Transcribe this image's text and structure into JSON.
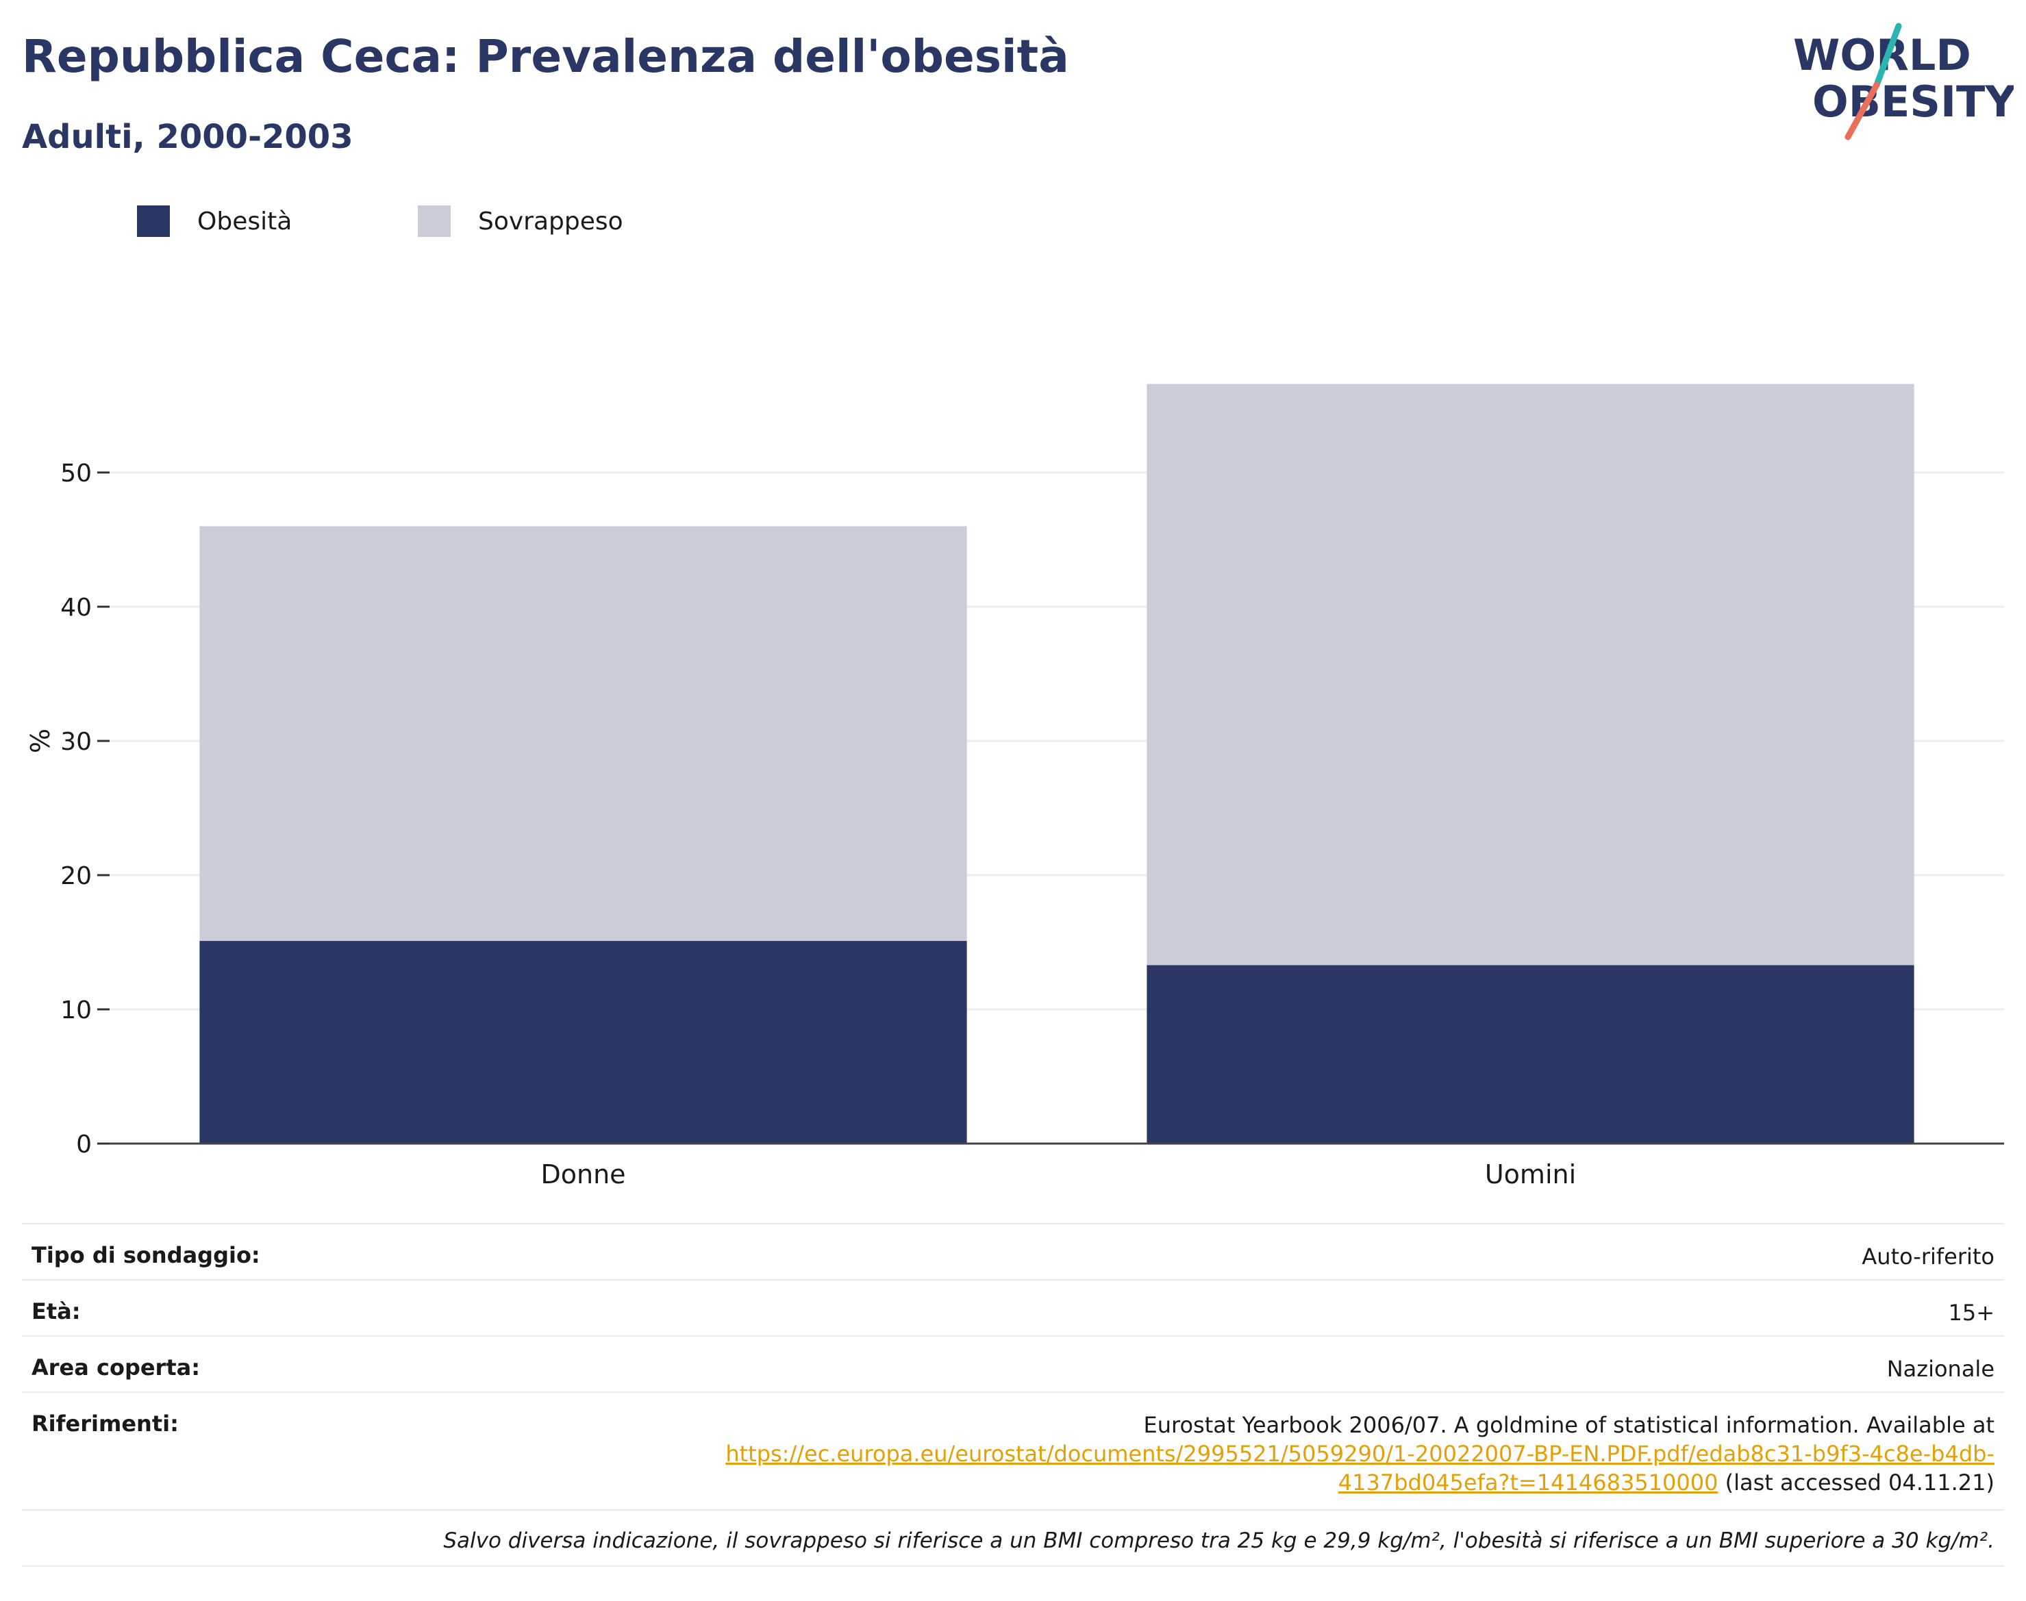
{
  "header": {
    "title": "Repubblica Ceca: Prevalenza dell'obesità",
    "subtitle": "Adulti, 2000-2003"
  },
  "logo": {
    "line1": "WORLD",
    "line2": "OBESITY",
    "colors": {
      "text": "#2a3764",
      "slash_top": "#2bb5b0",
      "slash_bottom": "#e8705a"
    }
  },
  "legend": [
    {
      "label": "Obesità",
      "color": "#2a3764"
    },
    {
      "label": "Sovrappeso",
      "color": "#cacdd8"
    }
  ],
  "chart_data": {
    "type": "bar",
    "stacked": true,
    "categories": [
      "Donne",
      "Uomini"
    ],
    "series": [
      {
        "name": "Obesità",
        "color": "#2a3764",
        "values": [
          15.1,
          13.3
        ]
      },
      {
        "name": "Sovrappeso",
        "color": "#cacdd8",
        "values": [
          30.9,
          43.3
        ]
      }
    ],
    "ylabel": "%",
    "ylim": [
      0,
      60
    ],
    "yticks": [
      0,
      10,
      20,
      30,
      40,
      50
    ],
    "grid": true,
    "legend_position": "top-left"
  },
  "meta": {
    "survey_type_label": "Tipo di sondaggio:",
    "survey_type_value": "Auto-riferito",
    "age_label": "Età:",
    "age_value": "15+",
    "area_label": "Area coperta:",
    "area_value": "Nazionale",
    "references_label": "Riferimenti:",
    "references_text": "Eurostat Yearbook 2006/07. A goldmine of statistical information. Available at",
    "references_link_line1": "https://ec.europa.eu/eurostat/documents/2995521/5059290/1-20022007-BP-EN.PDF.pdf/edab8c31-b9f3-4c8e-b4db-",
    "references_link_line2": "4137bd045efa?t=1414683510000",
    "references_suffix": " (last accessed 04.11.21)",
    "note": "Salvo diversa indicazione, il sovrappeso si riferisce a un BMI compreso tra 25 kg e 29,9 kg/m², l'obesità si riferisce a un BMI superiore a 30 kg/m²."
  }
}
